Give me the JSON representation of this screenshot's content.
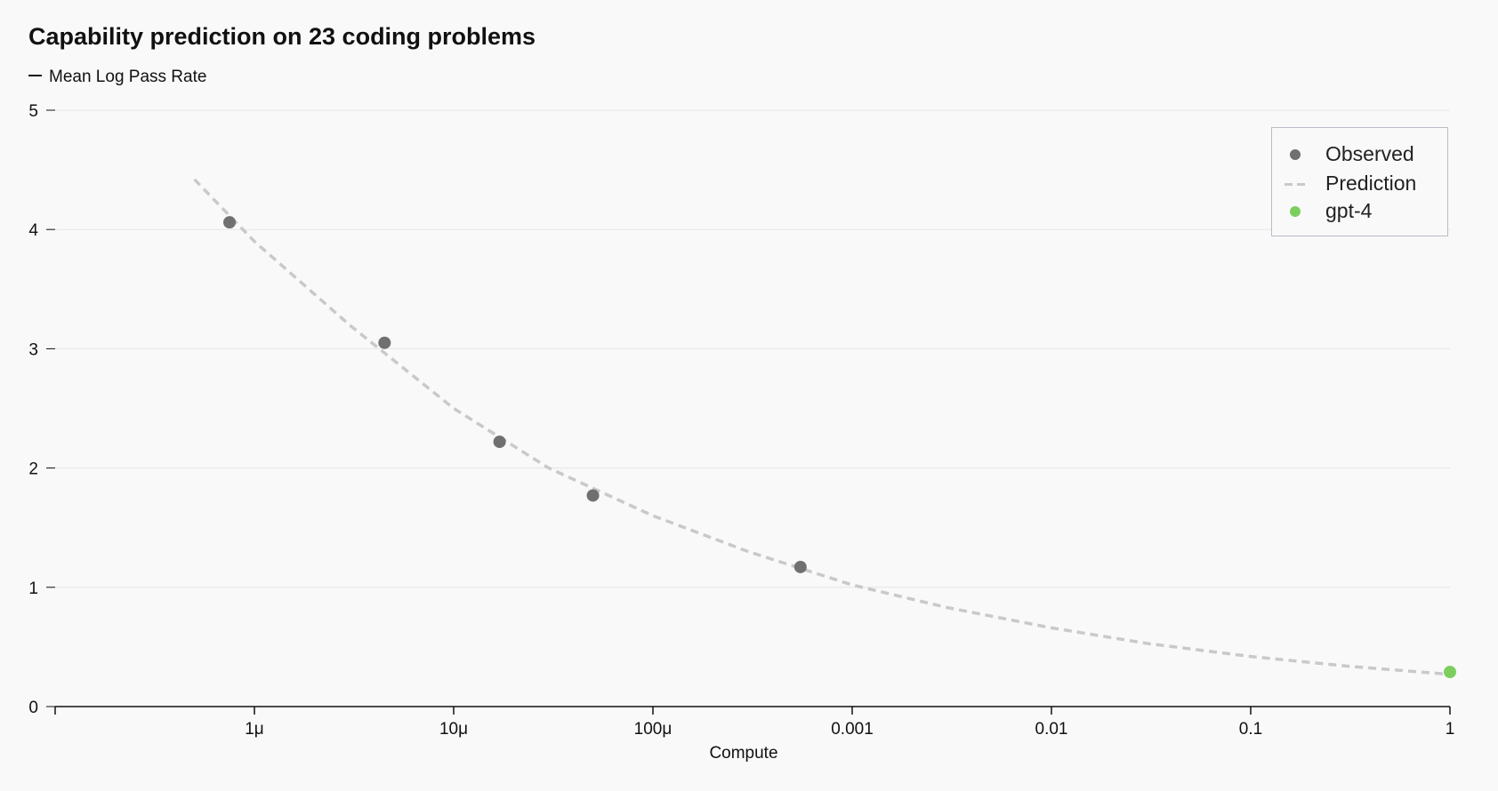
{
  "chart_data": {
    "type": "scatter",
    "title": "Capability prediction on 23 coding problems",
    "ylabel": "Mean Log Pass Rate",
    "xlabel": "Compute",
    "x_scale": "log",
    "xlim": [
      1e-07,
      1
    ],
    "ylim": [
      0,
      5
    ],
    "grid": true,
    "legend_position": "top-right",
    "x_ticks": [
      {
        "value": 1e-06,
        "label": "1μ"
      },
      {
        "value": 1e-05,
        "label": "10μ"
      },
      {
        "value": 0.0001,
        "label": "100μ"
      },
      {
        "value": 0.001,
        "label": "0.001"
      },
      {
        "value": 0.01,
        "label": "0.01"
      },
      {
        "value": 0.1,
        "label": "0.1"
      },
      {
        "value": 1,
        "label": "1"
      }
    ],
    "y_ticks": [
      {
        "value": 0,
        "label": "0"
      },
      {
        "value": 1,
        "label": "1"
      },
      {
        "value": 2,
        "label": "2"
      },
      {
        "value": 3,
        "label": "3"
      },
      {
        "value": 4,
        "label": "4"
      },
      {
        "value": 5,
        "label": "5"
      }
    ],
    "series": [
      {
        "name": "Observed",
        "type": "scatter",
        "color": "#707070",
        "points": [
          {
            "x": 7.5e-07,
            "y": 4.06
          },
          {
            "x": 4.5e-06,
            "y": 3.05
          },
          {
            "x": 1.7e-05,
            "y": 2.22
          },
          {
            "x": 5e-05,
            "y": 1.77
          },
          {
            "x": 0.00055,
            "y": 1.17
          }
        ]
      },
      {
        "name": "Prediction",
        "type": "line",
        "style": "dashed",
        "color": "#c9c9c9",
        "points": [
          {
            "x": 5e-07,
            "y": 4.42
          },
          {
            "x": 1e-06,
            "y": 3.9
          },
          {
            "x": 3e-06,
            "y": 3.2
          },
          {
            "x": 1e-05,
            "y": 2.5
          },
          {
            "x": 3e-05,
            "y": 2.0
          },
          {
            "x": 0.0001,
            "y": 1.6
          },
          {
            "x": 0.0003,
            "y": 1.3
          },
          {
            "x": 0.001,
            "y": 1.02
          },
          {
            "x": 0.003,
            "y": 0.83
          },
          {
            "x": 0.01,
            "y": 0.66
          },
          {
            "x": 0.03,
            "y": 0.53
          },
          {
            "x": 0.1,
            "y": 0.42
          },
          {
            "x": 0.3,
            "y": 0.34
          },
          {
            "x": 1,
            "y": 0.27
          }
        ]
      },
      {
        "name": "gpt-4",
        "type": "scatter",
        "color": "#7ccf5f",
        "points": [
          {
            "x": 1,
            "y": 0.29
          }
        ]
      }
    ],
    "axis_color": "#111111",
    "grid_color": "#e6e6e6"
  }
}
